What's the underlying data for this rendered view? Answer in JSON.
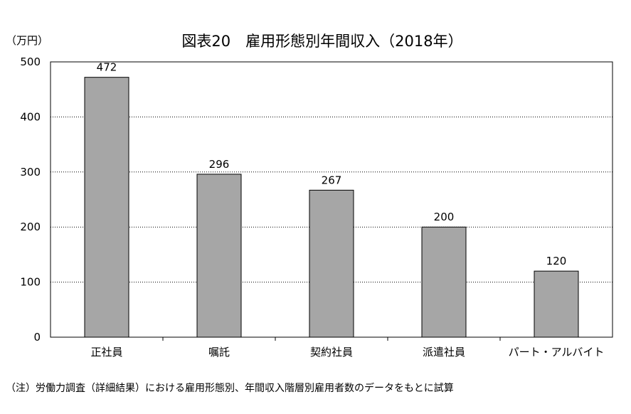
{
  "chart_data": {
    "type": "bar",
    "title": "図表20　雇用形態別年間収入（2018年）",
    "ylabel": "（万円）",
    "xlabel": "",
    "categories": [
      "正社員",
      "嘱託",
      "契約社員",
      "派遣社員",
      "パート・アルバイト"
    ],
    "values": [
      472,
      296,
      267,
      200,
      120
    ],
    "ylim": [
      0,
      500
    ],
    "yticks": [
      0,
      100,
      200,
      300,
      400,
      500
    ],
    "data_labels": [
      "472",
      "296",
      "267",
      "200",
      "120"
    ],
    "grid": "horizontal dotted",
    "legend": "none",
    "note": "（注）労働力調査（詳細結果）における雇用形態別、年間収入階層別雇用者数のデータをもとに試算",
    "colors": {
      "bar_fill": "#a6a6a6",
      "bar_stroke": "#000000",
      "grid": "#000000"
    }
  }
}
